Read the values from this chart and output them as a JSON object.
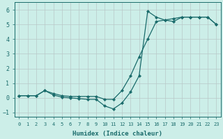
{
  "xlabel": "Humidex (Indice chaleur)",
  "ylabel": "",
  "xlim": [
    -0.5,
    23.5
  ],
  "ylim": [
    -1.3,
    6.5
  ],
  "xticks": [
    0,
    1,
    2,
    3,
    4,
    5,
    6,
    7,
    8,
    9,
    10,
    11,
    12,
    13,
    14,
    15,
    16,
    17,
    18,
    19,
    20,
    21,
    22,
    23
  ],
  "yticks": [
    -1,
    0,
    1,
    2,
    3,
    4,
    5,
    6
  ],
  "bg_color": "#cceee8",
  "grid_color": "#b8c8c8",
  "line_color": "#1a6b6b",
  "line1_x": [
    0,
    1,
    2,
    3,
    4,
    5,
    6,
    7,
    8,
    9,
    10,
    11,
    12,
    13,
    14,
    15,
    16,
    17,
    18,
    19,
    20,
    21,
    22,
    23
  ],
  "line1_y": [
    0.15,
    0.15,
    0.15,
    0.5,
    0.3,
    0.15,
    0.1,
    0.1,
    0.1,
    0.1,
    -0.1,
    -0.1,
    0.5,
    1.5,
    2.8,
    4.0,
    5.2,
    5.3,
    5.4,
    5.5,
    5.5,
    5.5,
    5.5,
    5.0
  ],
  "line2_x": [
    0,
    1,
    2,
    3,
    4,
    5,
    6,
    7,
    8,
    9,
    10,
    11,
    12,
    13,
    14,
    15,
    16,
    17,
    18,
    19,
    20,
    21,
    22,
    23
  ],
  "line2_y": [
    0.15,
    0.15,
    0.15,
    0.5,
    0.2,
    0.05,
    0.0,
    -0.05,
    -0.1,
    -0.1,
    -0.55,
    -0.75,
    -0.35,
    0.4,
    1.5,
    5.9,
    5.5,
    5.3,
    5.2,
    5.5,
    5.5,
    5.5,
    5.5,
    5.0
  ],
  "marker": "D",
  "markersize": 2.2,
  "linewidth": 0.9
}
